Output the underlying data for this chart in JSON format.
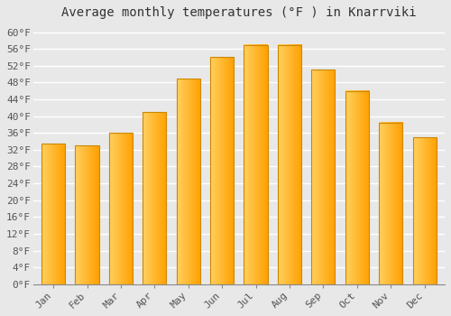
{
  "title": "Average monthly temperatures (°F ) in Knarrviki",
  "months": [
    "Jan",
    "Feb",
    "Mar",
    "Apr",
    "May",
    "Jun",
    "Jul",
    "Aug",
    "Sep",
    "Oct",
    "Nov",
    "Dec"
  ],
  "values": [
    33.5,
    33.0,
    36.0,
    41.0,
    49.0,
    54.0,
    57.0,
    57.0,
    51.0,
    46.0,
    38.5,
    35.0
  ],
  "bar_color_light": "#FFD060",
  "bar_color_dark": "#FFA000",
  "bar_edge_color": "#CC8800",
  "ylim": [
    0,
    62
  ],
  "yticks": [
    0,
    4,
    8,
    12,
    16,
    20,
    24,
    28,
    32,
    36,
    40,
    44,
    48,
    52,
    56,
    60
  ],
  "ytick_labels": [
    "0°F",
    "4°F",
    "8°F",
    "12°F",
    "16°F",
    "20°F",
    "24°F",
    "28°F",
    "32°F",
    "36°F",
    "40°F",
    "44°F",
    "48°F",
    "52°F",
    "56°F",
    "60°F"
  ],
  "background_color": "#e8e8e8",
  "plot_bg_color": "#e8e8e8",
  "grid_color": "#ffffff",
  "title_fontsize": 10,
  "tick_fontsize": 8,
  "bar_width": 0.7
}
